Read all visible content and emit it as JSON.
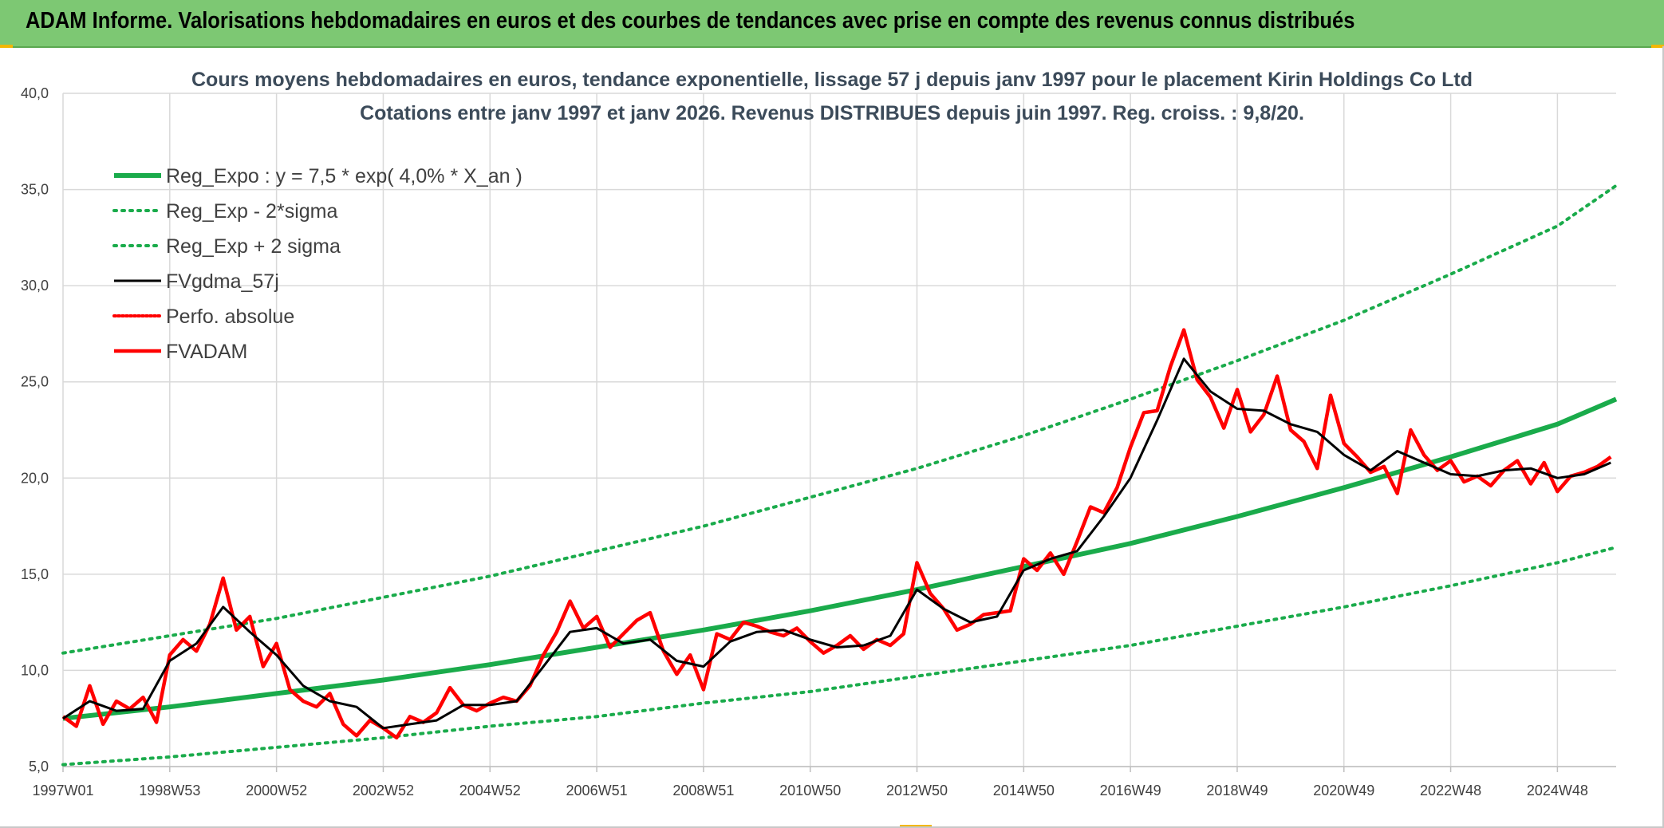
{
  "banner": {
    "title": "ADAM Informe. Valorisations hebdomadaires en euros et des courbes de tendances avec prise en compte des revenus connus distribués"
  },
  "colors": {
    "banner_bg": "#7dc873",
    "regression": "#1aab4b",
    "adam": "#ff0000",
    "smooth": "#000000",
    "corner_accent": "#f2b705"
  },
  "chart_data": {
    "type": "line",
    "title": "Cours moyens hebdomadaires en euros, tendance exponentielle, lissage 57 j depuis janv 1997 pour le placement Kirin Holdings Co Ltd",
    "subtitle": "Cotations entre janv 1997 et janv 2026. Revenus DISTRIBUES depuis juin 1997. Reg. croiss. : 9,8/20.",
    "xlabel": "",
    "ylabel": "",
    "x_range": [
      1997.0,
      2026.1
    ],
    "ylim": [
      5,
      40
    ],
    "y_ticks": [
      "5,0",
      "10,0",
      "15,0",
      "20,0",
      "25,0",
      "30,0",
      "35,0",
      "40,0"
    ],
    "y_tick_values": [
      5,
      10,
      15,
      20,
      25,
      30,
      35,
      40
    ],
    "x_ticks": [
      "1997W01",
      "1998W53",
      "2000W52",
      "2002W52",
      "2004W52",
      "2006W51",
      "2008W51",
      "2010W50",
      "2012W50",
      "2014W50",
      "2016W49",
      "2018W49",
      "2020W49",
      "2022W48",
      "2024W48"
    ],
    "x_tick_values": [
      1997.0,
      1999.0,
      2001.0,
      2003.0,
      2005.0,
      2007.0,
      2009.0,
      2011.0,
      2013.0,
      2015.0,
      2017.0,
      2019.0,
      2021.0,
      2023.0,
      2025.0
    ],
    "grid": true,
    "legend_position": "top-left",
    "series": [
      {
        "name": "Reg_Expo : y = 7,5 * exp( 4,0% *  X_an )",
        "style": "solid-thick",
        "color": "#1aab4b",
        "x": [
          1997,
          1999,
          2001,
          2003,
          2005,
          2007,
          2009,
          2011,
          2013,
          2015,
          2017,
          2019,
          2021,
          2023,
          2025,
          2026.1
        ],
        "values": [
          7.5,
          8.1,
          8.8,
          9.5,
          10.3,
          11.2,
          12.1,
          13.1,
          14.2,
          15.4,
          16.6,
          18.0,
          19.5,
          21.1,
          22.8,
          24.1
        ]
      },
      {
        "name": "Reg_Exp - 2*sigma",
        "style": "dotted",
        "color": "#1aab4b",
        "x": [
          1997,
          1999,
          2001,
          2003,
          2005,
          2007,
          2009,
          2011,
          2013,
          2015,
          2017,
          2019,
          2021,
          2023,
          2025,
          2026.1
        ],
        "values": [
          5.1,
          5.5,
          6.0,
          6.5,
          7.1,
          7.6,
          8.3,
          8.9,
          9.7,
          10.5,
          11.3,
          12.3,
          13.3,
          14.4,
          15.6,
          16.4
        ]
      },
      {
        "name": "Reg_Exp + 2 sigma",
        "style": "dotted",
        "color": "#1aab4b",
        "x": [
          1997,
          1999,
          2001,
          2003,
          2005,
          2007,
          2009,
          2011,
          2013,
          2015,
          2017,
          2019,
          2021,
          2023,
          2025,
          2026.1
        ],
        "values": [
          10.9,
          11.8,
          12.7,
          13.8,
          14.9,
          16.2,
          17.5,
          19.0,
          20.5,
          22.2,
          24.1,
          26.1,
          28.2,
          30.6,
          33.1,
          35.2
        ]
      },
      {
        "name": "FVgdma_57j",
        "style": "solid-thin",
        "color": "#000000",
        "x": [
          1997.0,
          1997.5,
          1998.0,
          1998.5,
          1999.0,
          1999.5,
          2000.0,
          2000.5,
          2001.0,
          2001.5,
          2002.0,
          2002.5,
          2003.0,
          2003.5,
          2004.0,
          2004.5,
          2005.0,
          2005.5,
          2006.0,
          2006.5,
          2007.0,
          2007.5,
          2008.0,
          2008.5,
          2009.0,
          2009.5,
          2010.0,
          2010.5,
          2011.0,
          2011.5,
          2012.0,
          2012.5,
          2013.0,
          2013.5,
          2014.0,
          2014.5,
          2015.0,
          2015.5,
          2016.0,
          2016.5,
          2017.0,
          2017.5,
          2018.0,
          2018.5,
          2019.0,
          2019.5,
          2020.0,
          2020.5,
          2021.0,
          2021.5,
          2022.0,
          2022.5,
          2023.0,
          2023.5,
          2024.0,
          2024.5,
          2025.0,
          2025.5,
          2026.0
        ],
        "values": [
          7.5,
          8.4,
          7.9,
          8.0,
          10.5,
          11.4,
          13.3,
          12.0,
          10.8,
          9.2,
          8.4,
          8.1,
          7.0,
          7.2,
          7.4,
          8.2,
          8.2,
          8.4,
          10.2,
          12.0,
          12.2,
          11.4,
          11.6,
          10.5,
          10.2,
          11.5,
          12.0,
          12.1,
          11.6,
          11.2,
          11.3,
          11.8,
          14.2,
          13.2,
          12.5,
          12.8,
          15.2,
          15.8,
          16.2,
          18.0,
          20.0,
          23.0,
          26.2,
          24.5,
          23.6,
          23.5,
          22.8,
          22.4,
          21.2,
          20.4,
          21.4,
          20.8,
          20.2,
          20.1,
          20.4,
          20.5,
          20.0,
          20.2,
          20.8
        ]
      },
      {
        "name": "Perfo. absolue",
        "style": "dotted",
        "color": "#ff0000",
        "values": []
      },
      {
        "name": "FVADAM",
        "style": "solid-thick",
        "color": "#ff0000",
        "x": [
          1997.0,
          1997.25,
          1997.5,
          1997.75,
          1998.0,
          1998.25,
          1998.5,
          1998.75,
          1999.0,
          1999.25,
          1999.5,
          1999.75,
          2000.0,
          2000.25,
          2000.5,
          2000.75,
          2001.0,
          2001.25,
          2001.5,
          2001.75,
          2002.0,
          2002.25,
          2002.5,
          2002.75,
          2003.0,
          2003.25,
          2003.5,
          2003.75,
          2004.0,
          2004.25,
          2004.5,
          2004.75,
          2005.0,
          2005.25,
          2005.5,
          2005.75,
          2006.0,
          2006.25,
          2006.5,
          2006.75,
          2007.0,
          2007.25,
          2007.5,
          2007.75,
          2008.0,
          2008.25,
          2008.5,
          2008.75,
          2009.0,
          2009.25,
          2009.5,
          2009.75,
          2010.0,
          2010.25,
          2010.5,
          2010.75,
          2011.0,
          2011.25,
          2011.5,
          2011.75,
          2012.0,
          2012.25,
          2012.5,
          2012.75,
          2013.0,
          2013.25,
          2013.5,
          2013.75,
          2014.0,
          2014.25,
          2014.5,
          2014.75,
          2015.0,
          2015.25,
          2015.5,
          2015.75,
          2016.0,
          2016.25,
          2016.5,
          2016.75,
          2017.0,
          2017.25,
          2017.5,
          2017.75,
          2018.0,
          2018.25,
          2018.5,
          2018.75,
          2019.0,
          2019.25,
          2019.5,
          2019.75,
          2020.0,
          2020.25,
          2020.5,
          2020.75,
          2021.0,
          2021.25,
          2021.5,
          2021.75,
          2022.0,
          2022.25,
          2022.5,
          2022.75,
          2023.0,
          2023.25,
          2023.5,
          2023.75,
          2024.0,
          2024.25,
          2024.5,
          2024.75,
          2025.0,
          2025.25,
          2025.5,
          2025.75,
          2026.0
        ],
        "values": [
          7.6,
          7.1,
          9.2,
          7.2,
          8.4,
          8.0,
          8.6,
          7.3,
          10.8,
          11.6,
          11.0,
          12.4,
          14.8,
          12.1,
          12.8,
          10.2,
          11.4,
          9.0,
          8.4,
          8.1,
          8.8,
          7.2,
          6.6,
          7.4,
          7.0,
          6.5,
          7.6,
          7.3,
          7.8,
          9.1,
          8.2,
          7.9,
          8.3,
          8.6,
          8.4,
          9.2,
          10.8,
          12.0,
          13.6,
          12.2,
          12.8,
          11.2,
          11.9,
          12.6,
          13.0,
          11.0,
          9.8,
          10.8,
          9.0,
          11.9,
          11.6,
          12.5,
          12.3,
          12.0,
          11.8,
          12.2,
          11.5,
          10.9,
          11.3,
          11.8,
          11.1,
          11.6,
          11.3,
          11.9,
          15.6,
          14.0,
          13.2,
          12.1,
          12.4,
          12.9,
          13.0,
          13.1,
          15.8,
          15.2,
          16.1,
          15.0,
          16.7,
          18.5,
          18.2,
          19.5,
          21.6,
          23.4,
          23.5,
          25.8,
          27.7,
          25.1,
          24.2,
          22.6,
          24.6,
          22.4,
          23.3,
          25.3,
          22.5,
          21.9,
          20.5,
          24.3,
          21.8,
          21.1,
          20.3,
          20.6,
          19.2,
          22.5,
          21.2,
          20.4,
          20.9,
          19.8,
          20.1,
          19.6,
          20.4,
          20.9,
          19.7,
          20.8,
          19.3,
          20.1,
          20.3,
          20.6,
          21.1
        ]
      }
    ]
  }
}
